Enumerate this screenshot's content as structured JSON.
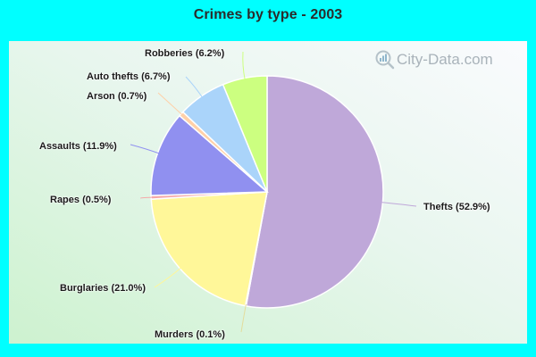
{
  "title": "Crimes by type - 2003",
  "watermark": "City-Data.com",
  "colors": {
    "page_background": "#00ffff",
    "title": "#2b2b2b"
  },
  "chart_data": {
    "type": "pie",
    "title": "Crimes by type - 2003",
    "start_angle": "12 o'clock",
    "direction": "clockwise",
    "categories": [
      "Thefts",
      "Murders",
      "Burglaries",
      "Rapes",
      "Assaults",
      "Arson",
      "Auto thefts",
      "Robberies"
    ],
    "values": [
      52.9,
      0.1,
      21.0,
      0.5,
      11.9,
      0.7,
      6.7,
      6.2
    ],
    "unit": "%",
    "colors": [
      "#bfa8d9",
      "#e3dc9c",
      "#fff799",
      "#f5a9a9",
      "#9090f0",
      "#ffd0a8",
      "#aad4fa",
      "#ccff80"
    ],
    "labels": [
      "Thefts (52.9%)",
      "Murders (0.1%)",
      "Burglaries (21.0%)",
      "Rapes (0.5%)",
      "Assaults (11.9%)",
      "Arson (0.7%)",
      "Auto thefts (6.7%)",
      "Robberies (6.2%)"
    ]
  }
}
